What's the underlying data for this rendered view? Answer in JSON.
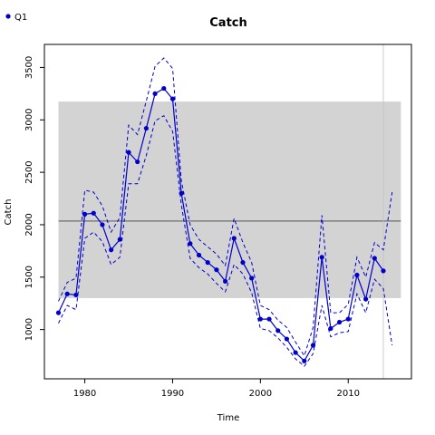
{
  "chart_data": {
    "type": "line",
    "title": "Catch",
    "xlabel": "Time",
    "ylabel": "Catch",
    "xlim": [
      1975.4,
      2017.2
    ],
    "ylim": [
      530,
      3720
    ],
    "xticks": [
      1980,
      1990,
      2000,
      2010
    ],
    "yticks": [
      1000,
      1500,
      2000,
      2500,
      3000,
      3500
    ],
    "grid": false,
    "legend_position": "top-left",
    "band": {
      "x": [
        1977,
        2016
      ],
      "y": [
        1300,
        3175
      ],
      "color": "#d3d3d3"
    },
    "reference_line": {
      "y": 2035,
      "color": "#808080"
    },
    "vertical_line": {
      "x": 2014,
      "color": "#c0c0c0"
    },
    "series": [
      {
        "name": "Q1",
        "color": "#0000cd",
        "x": [
          1977,
          1978,
          1979,
          1980,
          1981,
          1982,
          1983,
          1984,
          1985,
          1986,
          1987,
          1988,
          1989,
          1990,
          1991,
          1992,
          1993,
          1994,
          1995,
          1996,
          1997,
          1998,
          1999,
          2000,
          2001,
          2002,
          2003,
          2004,
          2005,
          2006,
          2007,
          2008,
          2009,
          2010,
          2011,
          2012,
          2013,
          2014
        ],
        "values": [
          1160,
          1340,
          1330,
          2100,
          2110,
          2000,
          1760,
          1860,
          2690,
          2600,
          2920,
          3250,
          3300,
          3200,
          2300,
          1820,
          1710,
          1640,
          1570,
          1460,
          1870,
          1640,
          1490,
          1100,
          1100,
          990,
          910,
          780,
          700,
          850,
          1690,
          1010,
          1070,
          1100,
          1520,
          1290,
          1680,
          1560
        ]
      }
    ],
    "upper": {
      "x": [
        1977,
        1978,
        1979,
        1980,
        1981,
        1982,
        1983,
        1984,
        1985,
        1986,
        1987,
        1988,
        1989,
        1990,
        1991,
        1992,
        1993,
        1994,
        1995,
        1996,
        1997,
        1998,
        1999,
        2000,
        2001,
        2002,
        2003,
        2004,
        2005,
        2006,
        2007,
        2008,
        2009,
        2010,
        2011,
        2012,
        2013,
        2014,
        2015
      ],
      "values": [
        1270,
        1450,
        1490,
        2330,
        2310,
        2180,
        1930,
        2070,
        2950,
        2860,
        3180,
        3510,
        3590,
        3490,
        2420,
        2000,
        1860,
        1790,
        1720,
        1610,
        2060,
        1830,
        1640,
        1230,
        1190,
        1090,
        1020,
        880,
        750,
        1020,
        2090,
        1160,
        1160,
        1240,
        1690,
        1500,
        1830,
        1760,
        2310
      ]
    },
    "lower": {
      "x": [
        1977,
        1978,
        1979,
        1980,
        1981,
        1982,
        1983,
        1984,
        1985,
        1986,
        1987,
        1988,
        1989,
        1990,
        1991,
        1992,
        1993,
        1994,
        1995,
        1996,
        1997,
        1998,
        1999,
        2000,
        2001,
        2002,
        2003,
        2004,
        2005,
        2006,
        2007,
        2008,
        2009,
        2010,
        2011,
        2012,
        2013,
        2014,
        2015
      ],
      "values": [
        1060,
        1230,
        1190,
        1870,
        1930,
        1840,
        1620,
        1690,
        2390,
        2390,
        2660,
        2990,
        3040,
        2890,
        2190,
        1680,
        1590,
        1530,
        1440,
        1360,
        1620,
        1530,
        1350,
        1010,
        990,
        920,
        830,
        720,
        650,
        770,
        1230,
        930,
        970,
        980,
        1340,
        1160,
        1480,
        1390,
        850
      ]
    }
  }
}
